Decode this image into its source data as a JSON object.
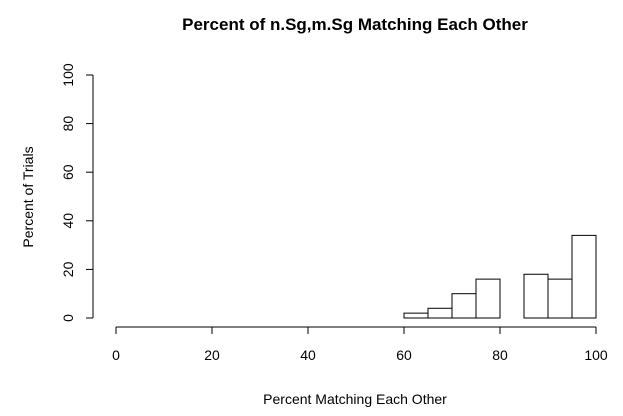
{
  "chart_data": {
    "type": "bar",
    "title": "Percent of n.Sg,m.Sg Matching Each Other",
    "xlabel": "Percent Matching Each Other",
    "ylabel": "Percent of Trials",
    "xlim": [
      0,
      100
    ],
    "ylim": [
      0,
      100
    ],
    "x_ticks": [
      "0",
      "20",
      "40",
      "60",
      "80",
      "100"
    ],
    "y_ticks": [
      "0",
      "20",
      "40",
      "60",
      "80",
      "100"
    ],
    "bin_edges": [
      60,
      65,
      70,
      75,
      80,
      85,
      90,
      95,
      100
    ],
    "values": [
      2,
      4,
      10,
      16,
      0,
      18,
      16,
      34
    ],
    "grid": false,
    "legend": "none"
  }
}
